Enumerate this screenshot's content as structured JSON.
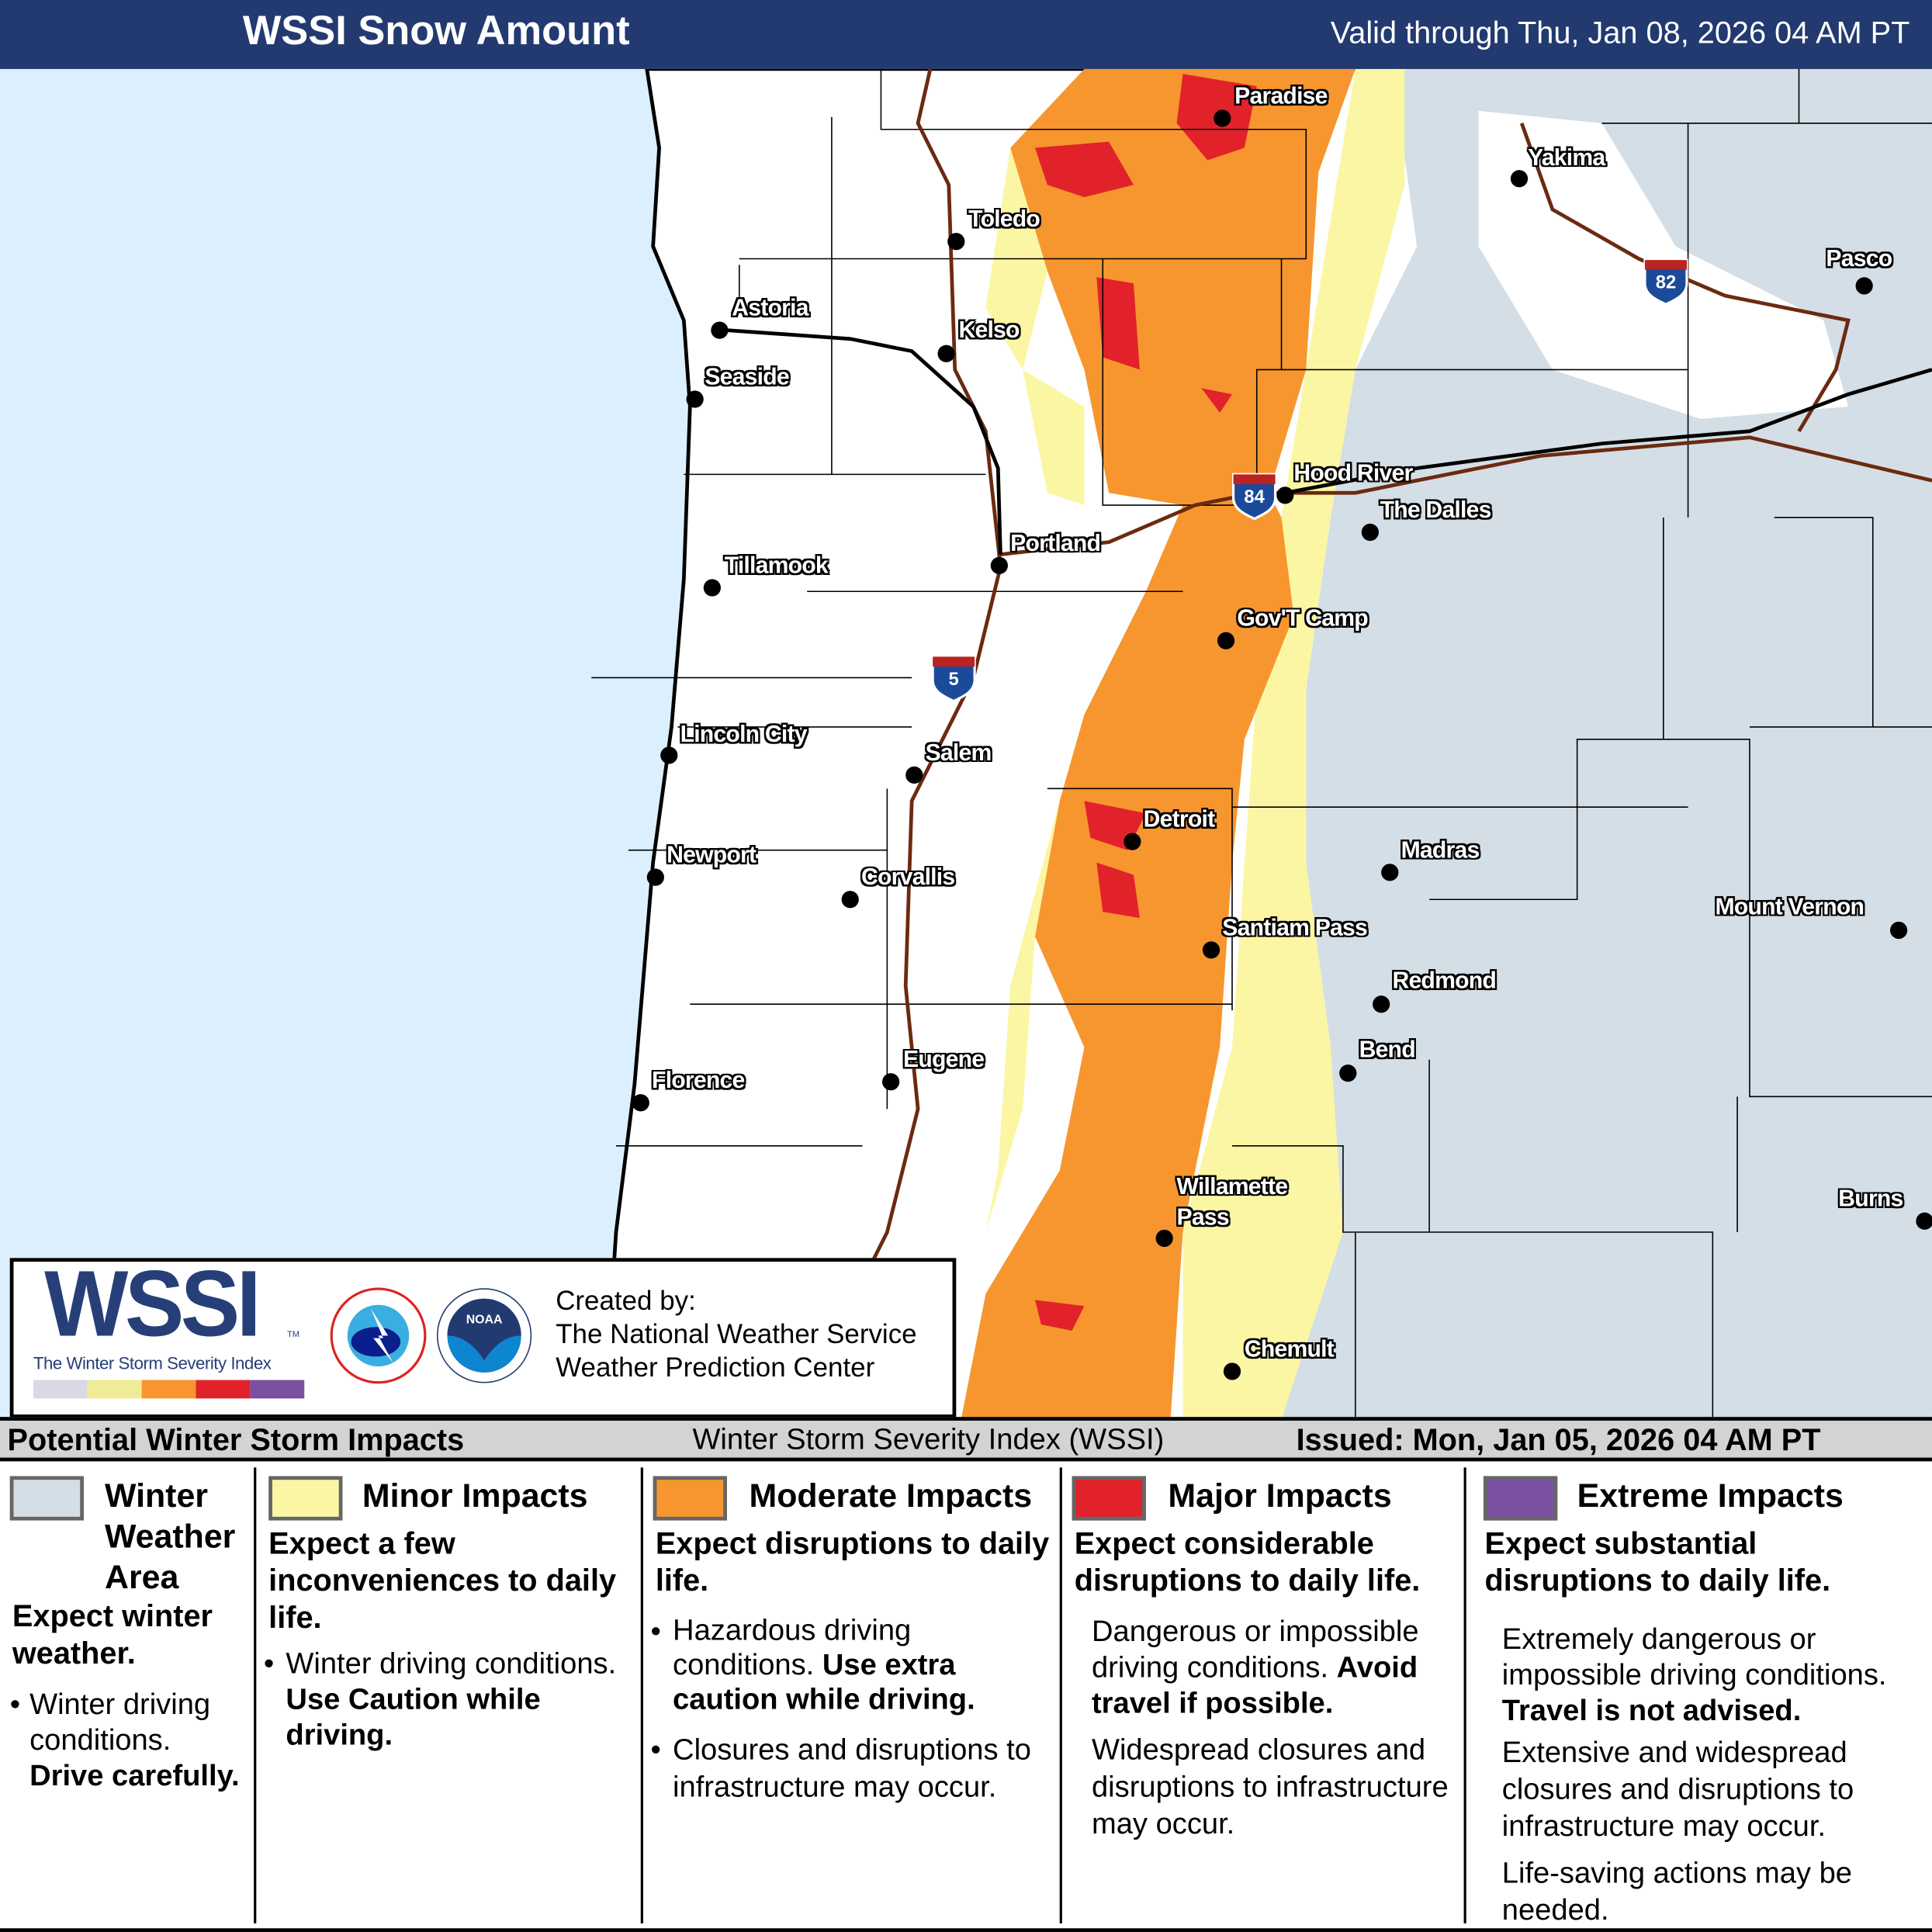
{
  "header": {
    "title": "WSSI Snow Amount",
    "valid": "Valid through Thu, Jan 08, 2026 04 AM PT"
  },
  "map": {
    "colors": {
      "ocean": "#dcefff",
      "land": "#ffffff",
      "winter_weather": "#d3dee6",
      "minor": "#fbf6a3",
      "moderate": "#f7962f",
      "major": "#e2222a",
      "extreme": "#7a51a1",
      "interstate_road": "#6b2a10"
    },
    "cities": [
      "Paradise",
      "Yakima",
      "Toledo",
      "Pasco",
      "Astoria",
      "Kelso",
      "Seaside",
      "Hood River",
      "The Dalles",
      "Portland",
      "Tillamook",
      "Gov'T Camp",
      "Lincoln City",
      "Salem",
      "Detroit",
      "Madras",
      "Newport",
      "Corvallis",
      "Mount Vernon",
      "Santiam Pass",
      "Redmond",
      "Bend",
      "Florence",
      "Eugene",
      "Burns",
      "Willamette",
      "Pass",
      "Chemult"
    ],
    "interstates": [
      "82",
      "84",
      "5"
    ]
  },
  "logo": {
    "wordmark": "WSSI",
    "tm": "TM",
    "tagline": "The Winter Storm Severity Index",
    "scale_colors": [
      "#d9d9e6",
      "#eeec96",
      "#f7962f",
      "#e2222a",
      "#7a51a1"
    ],
    "created_by": "Created by:",
    "org1": "The National Weather Service",
    "org2": "Weather Prediction Center"
  },
  "legend": {
    "title": "Potential Winter Storm Impacts",
    "index_name": "Winter Storm Severity Index (WSSI)",
    "issued": "Issued: Mon, Jan 05, 2026 04 AM PT",
    "categories": [
      {
        "name": "Winter Weather Area",
        "color": "#d3dee6",
        "summary": "Expect winter weather.",
        "details": [
          "Winter driving conditions.",
          "Drive carefully."
        ]
      },
      {
        "name": "Minor Impacts",
        "color": "#fbf6a3",
        "summary": "Expect a few inconveniences to daily life.",
        "details": [
          "Winter driving conditions.",
          "Use Caution while driving."
        ]
      },
      {
        "name": "Moderate Impacts",
        "color": "#f7962f",
        "summary": "Expect disruptions to daily life.",
        "details": [
          "Hazardous driving conditions.",
          "Use extra caution while driving.",
          "Closures and disruptions to infrastructure may occur."
        ]
      },
      {
        "name": "Major Impacts",
        "color": "#e2222a",
        "summary": "Expect considerable disruptions to daily life.",
        "details": [
          "Dangerous or impossible driving conditions.",
          "Avoid travel if possible.",
          "Widespread closures and disruptions to infrastructure may occur."
        ]
      },
      {
        "name": "Extreme Impacts",
        "color": "#7a51a1",
        "summary": "Expect substantial disruptions to daily life.",
        "details": [
          "Extremely dangerous or impossible driving conditions.",
          "Travel is not advised.",
          "Extensive and widespread closures and disruptions to infrastructure may occur.",
          "Life-saving actions may be needed."
        ]
      }
    ]
  }
}
